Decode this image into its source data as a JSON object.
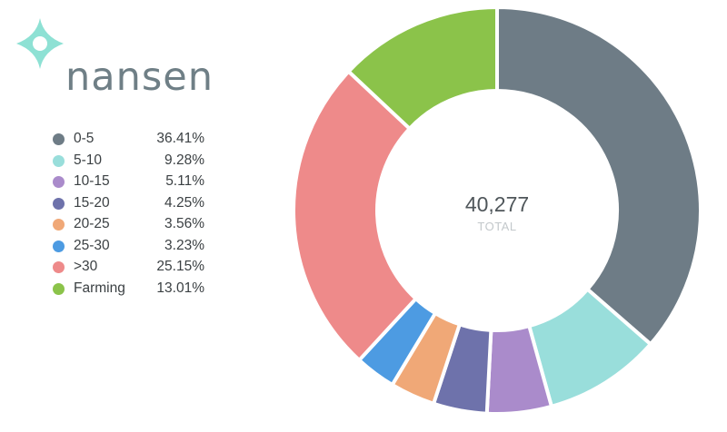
{
  "logo": {
    "text": "nansen",
    "icon": "nansen-logo-icon",
    "icon_color": "#8ee1d4",
    "text_color": "#6f7f86"
  },
  "chart_data": {
    "type": "donut",
    "total": "40,277",
    "total_label": "TOTAL",
    "series": [
      {
        "name": "0-5",
        "percent": "36.41%",
        "value": 36.41,
        "color": "#6e7c86"
      },
      {
        "name": "5-10",
        "percent": "9.28%",
        "value": 9.28,
        "color": "#99dedb"
      },
      {
        "name": "10-15",
        "percent": "5.11%",
        "value": 5.11,
        "color": "#aa8bcb"
      },
      {
        "name": "15-20",
        "percent": "4.25%",
        "value": 4.25,
        "color": "#6e72ab"
      },
      {
        "name": "20-25",
        "percent": "3.56%",
        "value": 3.56,
        "color": "#f0a877"
      },
      {
        "name": "25-30",
        "percent": "3.23%",
        "value": 3.23,
        "color": "#4d9be2"
      },
      {
        "name": ">30",
        "percent": "25.15%",
        "value": 25.15,
        "color": "#ee8a8a"
      },
      {
        "name": "Farming",
        "percent": "13.01%",
        "value": 13.01,
        "color": "#8bc34a"
      }
    ],
    "legend_position": "left"
  }
}
